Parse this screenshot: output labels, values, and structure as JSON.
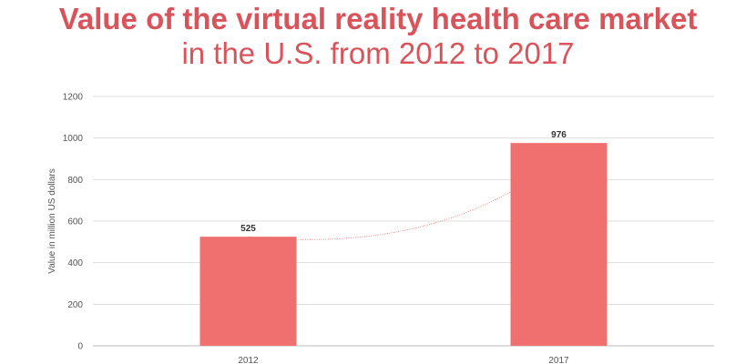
{
  "chart_data": {
    "type": "bar",
    "title": "Value of the virtual reality health care market",
    "subtitle": "in the U.S. from 2012 to 2017",
    "categories": [
      "2012",
      "2017"
    ],
    "series": [
      {
        "values": [
          525,
          976
        ]
      }
    ],
    "data_labels": [
      "525",
      "976"
    ],
    "xlabel": "",
    "ylabel": "Value in million US dollars",
    "ylim": [
      0,
      1200
    ],
    "yticks": [
      0,
      200,
      400,
      600,
      800,
      1000,
      1200
    ],
    "grid": true,
    "trendline": "dotted",
    "colors": {
      "bar": "#f07070",
      "title": "#d9535b",
      "grid": "#dddddd",
      "trend": "#e07070"
    }
  }
}
